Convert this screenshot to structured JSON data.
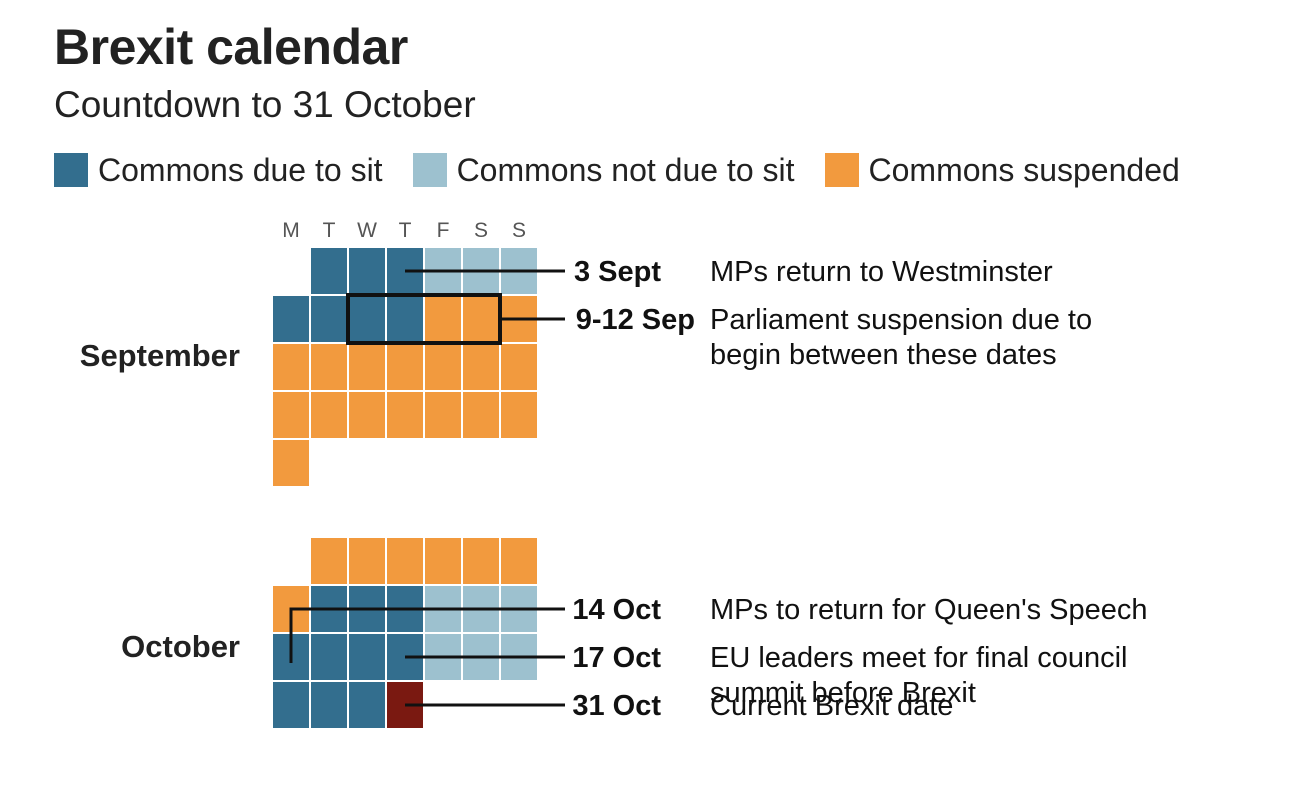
{
  "title": "Brexit calendar",
  "subtitle": "Countdown to 31 October",
  "legend": [
    {
      "label": "Commons due to sit",
      "color": "#336e8e"
    },
    {
      "label": "Commons not due to sit",
      "color": "#9dc1cf"
    },
    {
      "label": "Commons suspended",
      "color": "#f29a3e"
    }
  ],
  "chart_data": {
    "type": "heatmap",
    "weekdays": [
      "M",
      "T",
      "W",
      "T",
      "F",
      "S",
      "S"
    ],
    "status_colors": {
      "sit": "#336e8e",
      "nosit": "#9dc1cf",
      "suspended": "#f29a3e",
      "brexit": "#7a1911"
    },
    "months": [
      {
        "name": "September",
        "first_weekday": 1,
        "days": [
          "sit",
          "sit",
          "sit",
          "nosit",
          "nosit",
          "nosit",
          "sit",
          "sit",
          "sit",
          "sit",
          "suspended",
          "suspended",
          "suspended",
          "suspended",
          "suspended",
          "suspended",
          "suspended",
          "suspended",
          "suspended",
          "suspended",
          "suspended",
          "suspended",
          "suspended",
          "suspended",
          "suspended",
          "suspended",
          "suspended",
          "suspended"
        ],
        "highlight_days": [
          9,
          12
        ]
      },
      {
        "name": "October",
        "first_weekday": 1,
        "days": [
          "suspended",
          "suspended",
          "suspended",
          "suspended",
          "suspended",
          "suspended",
          "suspended",
          "sit",
          "sit",
          "sit",
          "nosit",
          "nosit",
          "nosit",
          "sit",
          "sit",
          "sit",
          "sit",
          "nosit",
          "nosit",
          "nosit",
          "sit",
          "sit",
          "sit",
          "brexit"
        ]
      }
    ],
    "annotations": [
      {
        "month": 0,
        "day": 3,
        "date": "3 Sept",
        "lines": [
          "MPs return to Westminster"
        ]
      },
      {
        "month": 0,
        "day": 9,
        "date": "9-12 Sep",
        "lines": [
          "Parliament suspension due to",
          "begin between these dates"
        ],
        "box": true
      },
      {
        "month": 1,
        "day": 14,
        "date": "14 Oct",
        "lines": [
          "MPs to return for Queen's Speech"
        ]
      },
      {
        "month": 1,
        "day": 17,
        "date": "17 Oct",
        "lines": [
          "EU leaders meet for final council",
          "summit before Brexit"
        ]
      },
      {
        "month": 1,
        "day": 24,
        "date": "31 Oct",
        "lines": [
          "Current Brexit date"
        ]
      }
    ]
  }
}
